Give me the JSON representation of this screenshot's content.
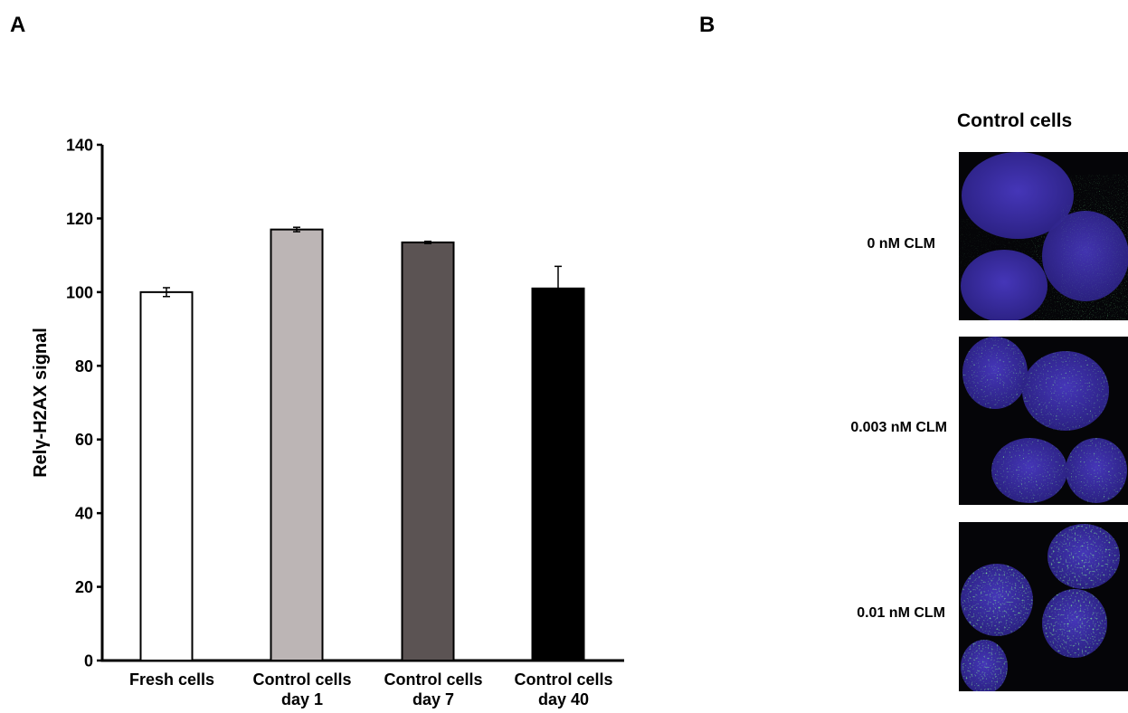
{
  "panels": {
    "a": {
      "letter": "A"
    },
    "b": {
      "letter": "B"
    }
  },
  "chart_data": {
    "type": "bar",
    "ylabel": "Relγ-H2AX signal",
    "ylim": [
      0,
      140
    ],
    "yticks": [
      0,
      20,
      40,
      60,
      80,
      100,
      120,
      140
    ],
    "categories": [
      [
        "Fresh cells"
      ],
      [
        "Control cells",
        "day 1"
      ],
      [
        "Control cells",
        "day 7"
      ],
      [
        "Control cells",
        "day 40"
      ]
    ],
    "values": [
      100,
      117,
      113.5,
      101
    ],
    "errors": [
      1.2,
      0.6,
      0.3,
      6
    ],
    "bar_colors": [
      "#ffffff",
      "#bcb5b5",
      "#5b5353",
      "#000000"
    ],
    "grid": false
  },
  "micrographs": {
    "title": "Control cells",
    "images": [
      {
        "label": "0 nM CLM"
      },
      {
        "label": "0.003 nM CLM"
      },
      {
        "label": "0.01 nM CLM"
      }
    ],
    "colors": {
      "nucleus": "#3b2fa8",
      "foci": "#39e04a",
      "background": "#050508"
    }
  }
}
